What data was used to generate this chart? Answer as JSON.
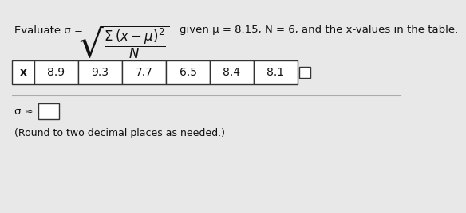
{
  "formula_prefix": "Evaluate σ = ",
  "formula_math": "$\\sqrt{\\dfrac{\\Sigma\\,(x-\\mu)^2}{N}}$",
  "given_text": "given μ = 8.15, N = 6, and the x-values in the table.",
  "table_header": "x",
  "x_values": [
    "8.9",
    "9.3",
    "7.7",
    "6.5",
    "8.4",
    "8.1"
  ],
  "answer_prefix": "σ ≈",
  "round_note": "(Round to two decimal places as needed.)",
  "bg_color": "#e8e8e8",
  "table_bg": "#ffffff",
  "text_color": "#111111",
  "font_size_main": 9.5,
  "font_size_formula": 12,
  "font_size_table": 10,
  "font_size_note": 9
}
